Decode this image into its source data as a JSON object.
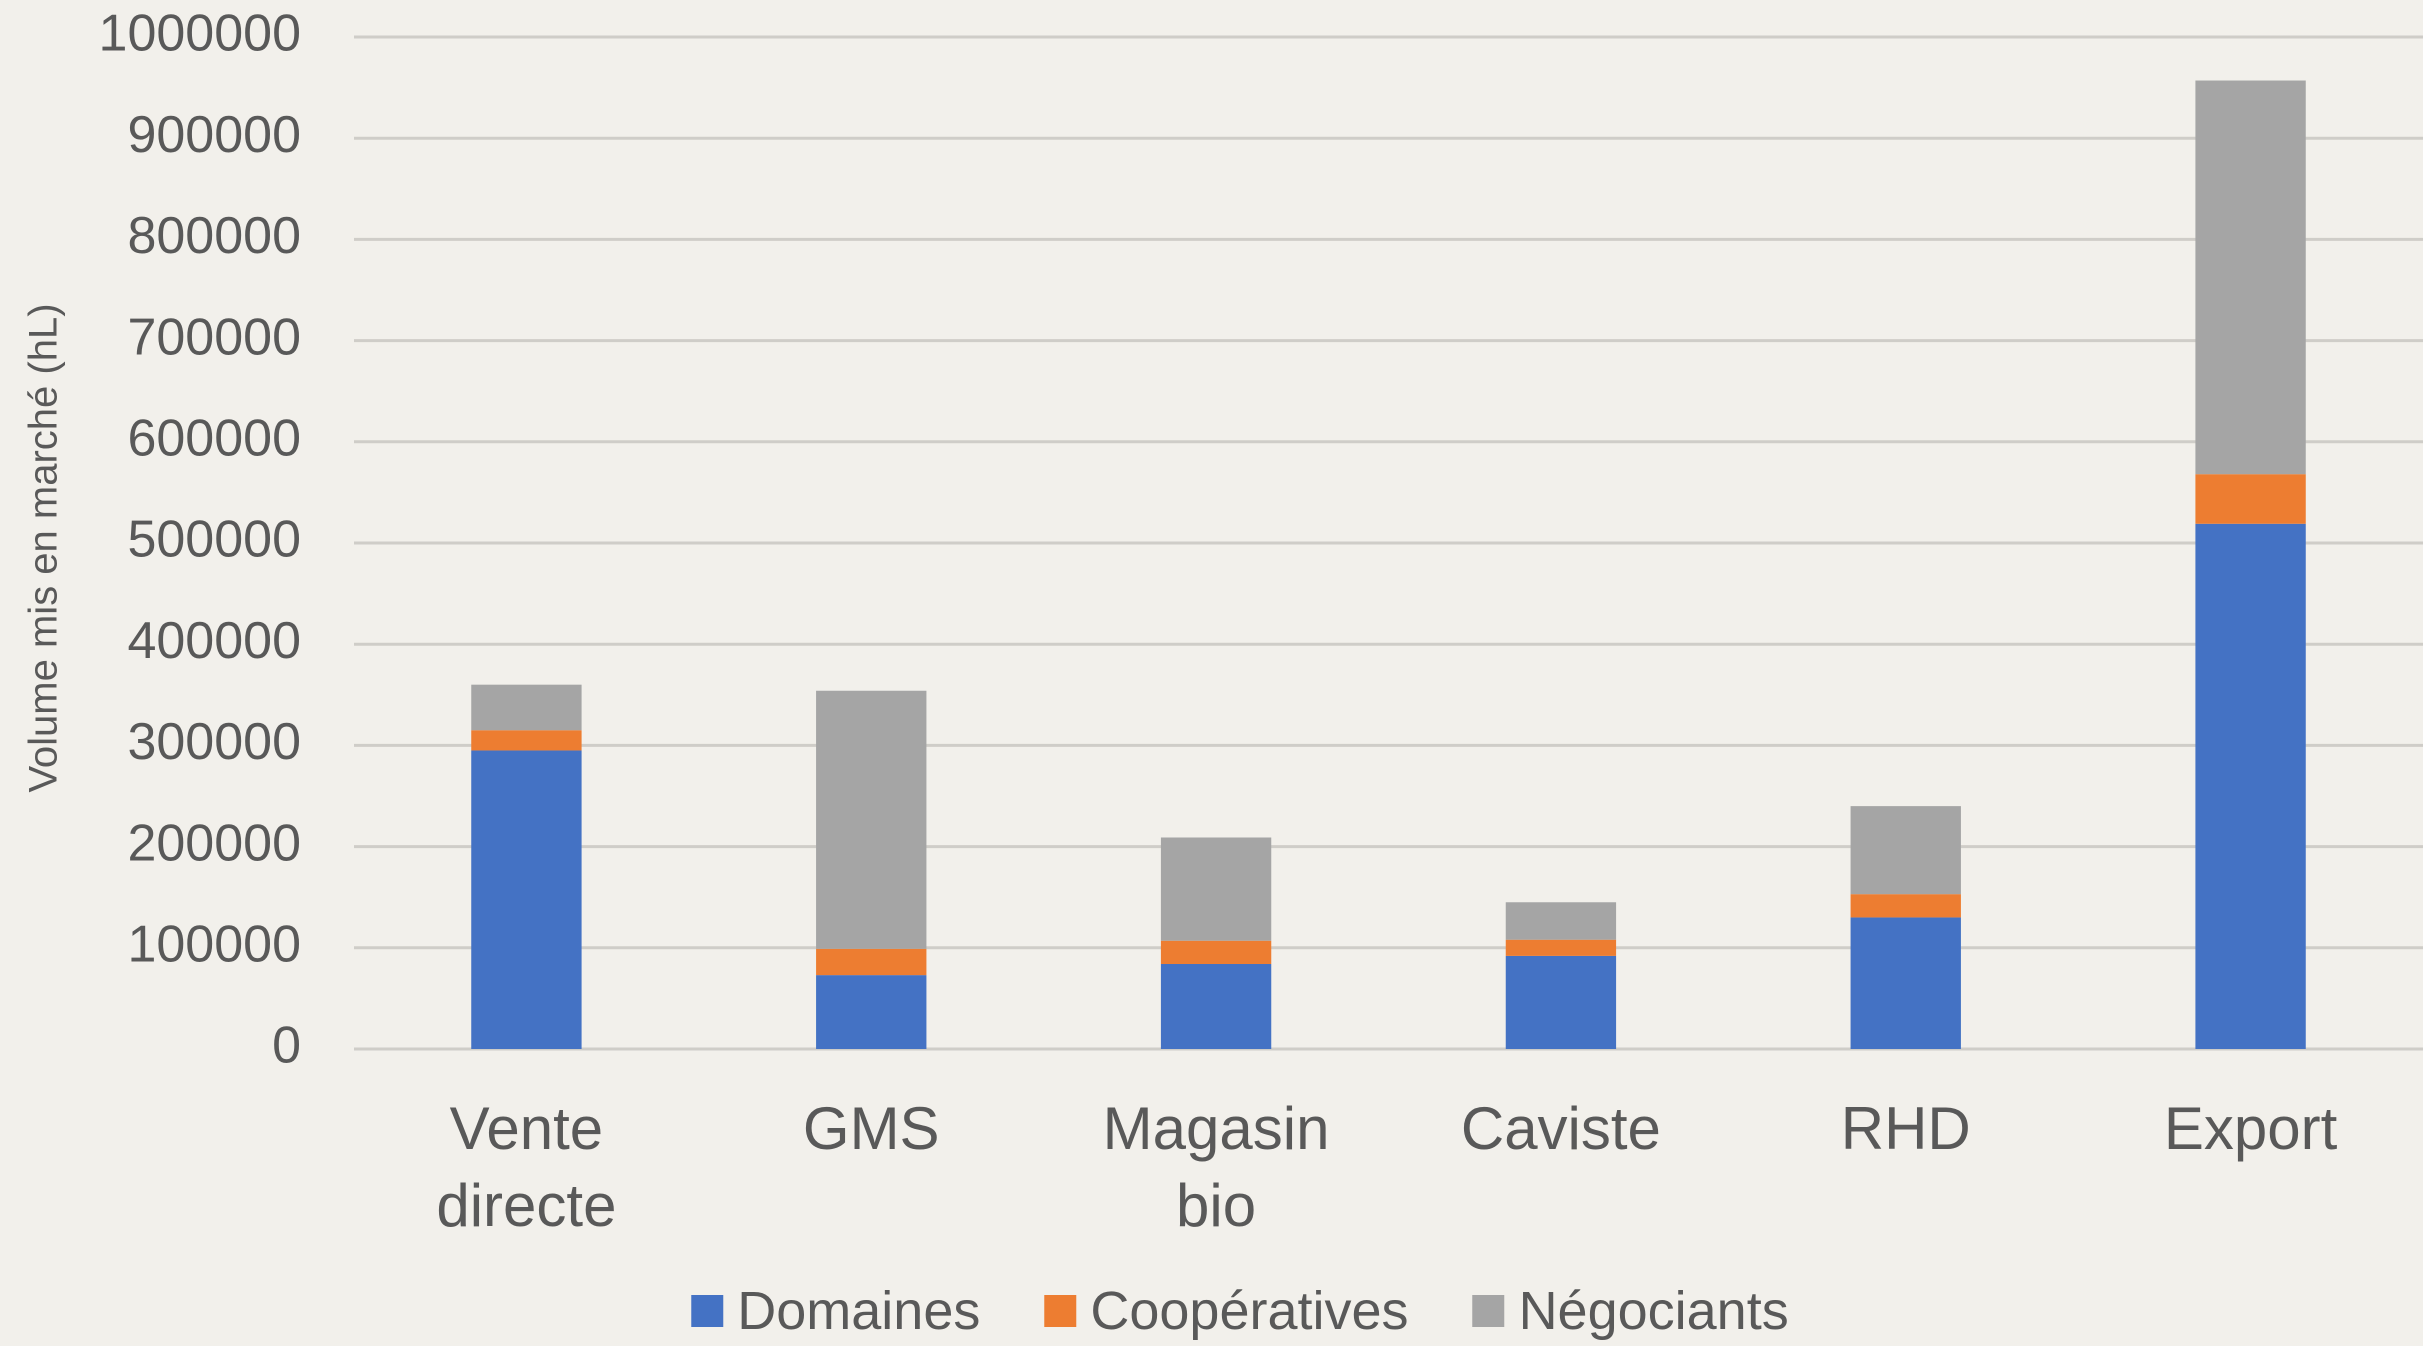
{
  "chart_data": {
    "type": "stacked_bar",
    "y_axis_label": "Volume mis en marché (hL)",
    "categories": [
      "Vente directe",
      "GMS",
      "Magasin bio",
      "Caviste",
      "RHD",
      "Export"
    ],
    "series": [
      {
        "name": "Domaines",
        "color": "#4472c4",
        "values": [
          295000,
          73000,
          84000,
          92000,
          130000,
          519000
        ]
      },
      {
        "name": "Coopératives",
        "color": "#ed7d31",
        "values": [
          20000,
          26000,
          23000,
          16000,
          23000,
          49000
        ]
      },
      {
        "name": "Négociants",
        "color": "#a5a5a5",
        "values": [
          45000,
          255000,
          102000,
          37000,
          87000,
          389000
        ]
      }
    ],
    "ylim": [
      0,
      1000000
    ],
    "yticks": [
      0,
      100000,
      200000,
      300000,
      400000,
      500000,
      600000,
      700000,
      800000,
      900000,
      1000000
    ],
    "grid": true,
    "legend": "bottom"
  }
}
